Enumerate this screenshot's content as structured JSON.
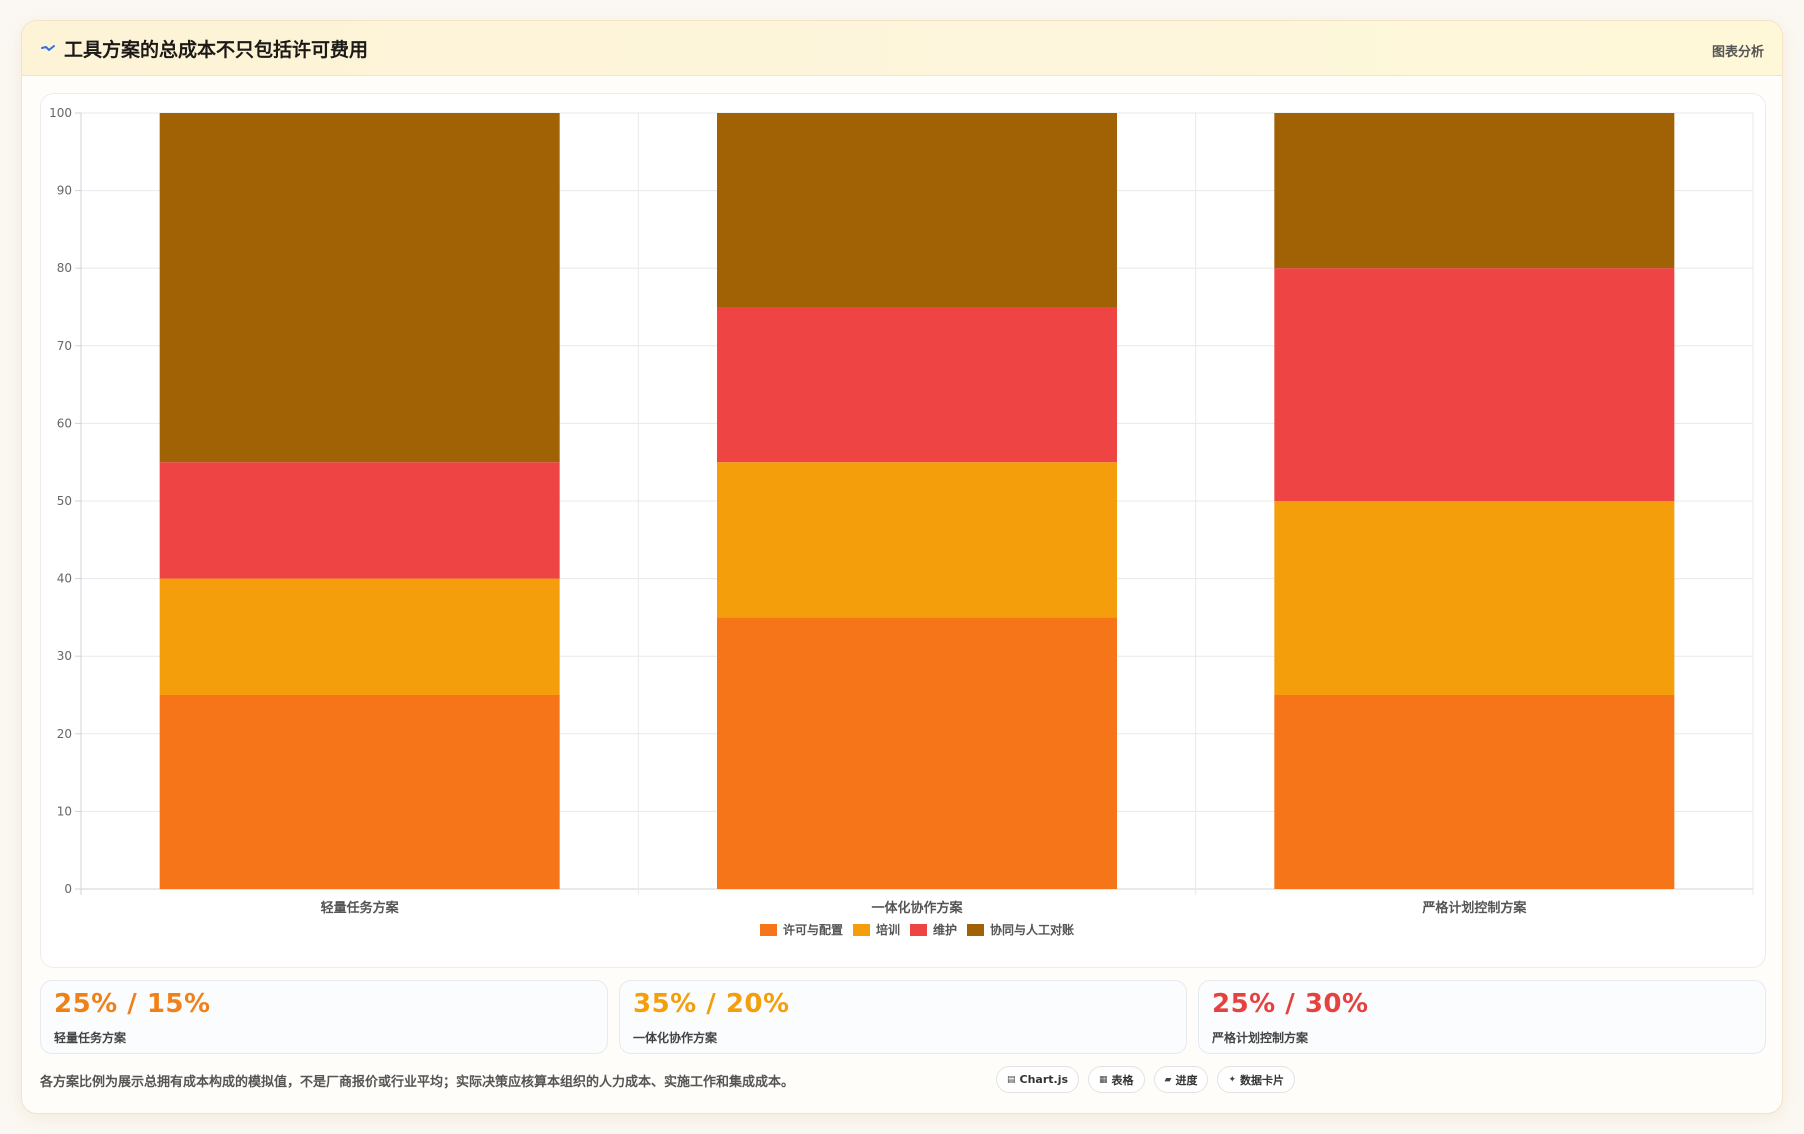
{
  "header": {
    "title": "工具方案的总成本不只包括许可费用",
    "tag": "图表分析"
  },
  "chart_data": {
    "type": "bar",
    "stacked": true,
    "categories": [
      "轻量任务方案",
      "一体化协作方案",
      "严格计划控制方案"
    ],
    "series": [
      {
        "name": "许可与配置",
        "color": "#f77519",
        "values": [
          25,
          35,
          25
        ]
      },
      {
        "name": "培训",
        "color": "#f59e0c",
        "values": [
          15,
          20,
          25
        ]
      },
      {
        "name": "维护",
        "color": "#ef4444",
        "values": [
          15,
          20,
          30
        ]
      },
      {
        "name": "协同与人工对账",
        "color": "#a16205",
        "values": [
          45,
          25,
          20
        ]
      }
    ],
    "ylim": [
      0,
      100
    ],
    "yticks": [
      0,
      10,
      20,
      30,
      40,
      50,
      60,
      70,
      80,
      90,
      100
    ],
    "grid": true,
    "legend": "bottom"
  },
  "stats": [
    {
      "value": "25% / 15%",
      "label": "轻量任务方案",
      "color": "#f08118"
    },
    {
      "value": "35% / 20%",
      "label": "一体化协作方案",
      "color": "#f59e0c"
    },
    {
      "value": "25% / 30%",
      "label": "严格计划控制方案",
      "color": "#e5413f"
    }
  ],
  "note": "各方案比例为展示总拥有成本构成的模拟值，不是厂商报价或行业平均；实际决策应核算本组织的人力成本、实施工作和集成成本。",
  "chips": [
    {
      "icon": "▤",
      "label": "Chart.js"
    },
    {
      "icon": "▦",
      "label": "表格"
    },
    {
      "icon": "▰",
      "label": "进度"
    },
    {
      "icon": "✦",
      "label": "数据卡片"
    }
  ]
}
